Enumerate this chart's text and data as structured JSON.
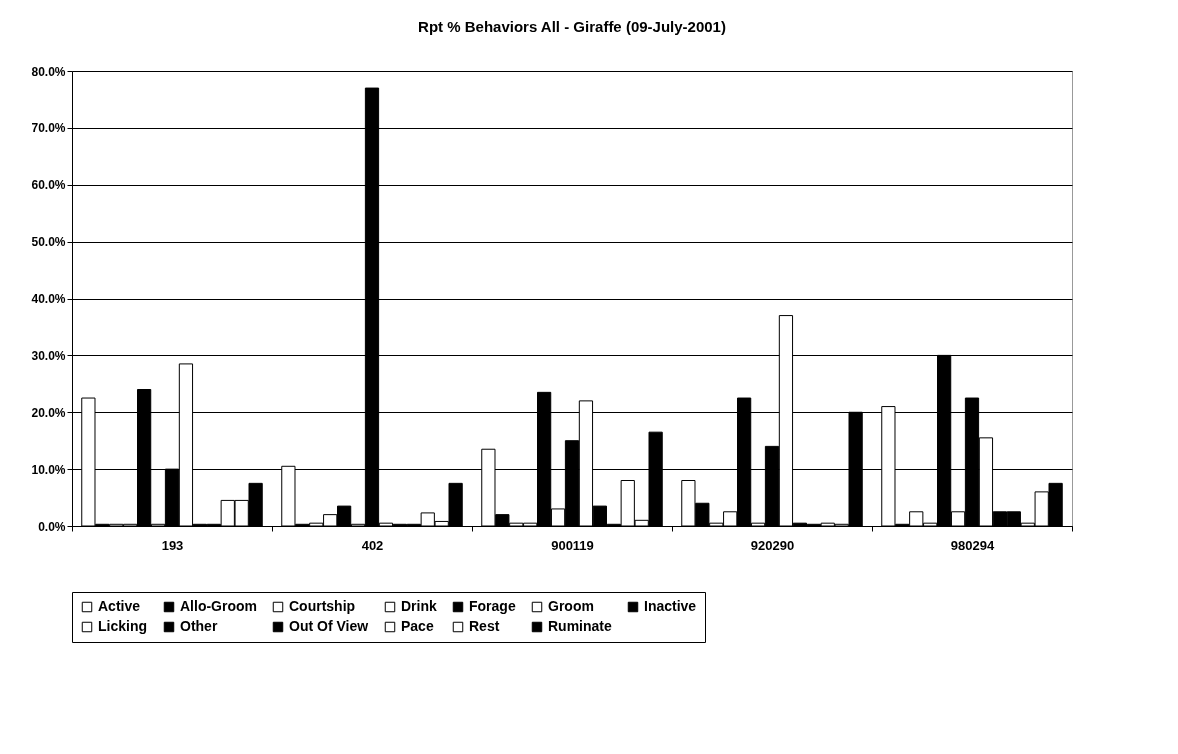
{
  "chart_data": {
    "type": "bar",
    "title": "Rpt % Behaviors All - Giraffe (09-July-2001)",
    "categories": [
      "193",
      "402",
      "900119",
      "920290",
      "980294"
    ],
    "series": [
      {
        "name": "Active",
        "color": "#ffffff",
        "values": [
          22.5,
          10.5,
          13.5,
          8,
          21
        ]
      },
      {
        "name": "Allo-Groom",
        "color": "#000000",
        "values": [
          0.3,
          0.3,
          2,
          4,
          0.3
        ]
      },
      {
        "name": "Courtship",
        "color": "#ffffff",
        "values": [
          0.3,
          0.5,
          0.5,
          0.5,
          2.5
        ]
      },
      {
        "name": "Drink",
        "color": "#ffffff",
        "values": [
          0.3,
          2,
          0.5,
          2.5,
          0.5
        ]
      },
      {
        "name": "Forage",
        "color": "#000000",
        "values": [
          24,
          3.5,
          23.5,
          22.5,
          30
        ]
      },
      {
        "name": "Groom",
        "color": "#ffffff",
        "values": [
          0.3,
          0.3,
          3,
          0.5,
          2.5
        ]
      },
      {
        "name": "Inactive",
        "color": "#000000",
        "values": [
          10,
          77,
          15,
          14,
          22.5
        ]
      },
      {
        "name": "Licking",
        "color": "#ffffff",
        "values": [
          28.5,
          0.5,
          22,
          37,
          15.5
        ]
      },
      {
        "name": "Other",
        "color": "#000000",
        "values": [
          0.3,
          0.3,
          3.5,
          0.5,
          2.5
        ]
      },
      {
        "name": "Out Of View",
        "color": "#000000",
        "values": [
          0.3,
          0.3,
          0.3,
          0.3,
          2.5
        ]
      },
      {
        "name": "Pace",
        "color": "#ffffff",
        "values": [
          4.5,
          2.3,
          8,
          0.5,
          0.5
        ]
      },
      {
        "name": "Rest",
        "color": "#ffffff",
        "values": [
          4.5,
          0.8,
          1,
          0.3,
          6
        ]
      },
      {
        "name": "Ruminate",
        "color": "#000000",
        "values": [
          7.5,
          7.5,
          16.5,
          20,
          7.5
        ]
      }
    ],
    "ylim": [
      0,
      80
    ],
    "yticks": [
      {
        "value": 0,
        "label": "0.0%"
      },
      {
        "value": 10,
        "label": "10.0%"
      },
      {
        "value": 20,
        "label": "20.0%"
      },
      {
        "value": 30,
        "label": "30.0%"
      },
      {
        "value": 40,
        "label": "40.0%"
      },
      {
        "value": 50,
        "label": "50.0%"
      },
      {
        "value": 60,
        "label": "60.0%"
      },
      {
        "value": 70,
        "label": "70.0%"
      },
      {
        "value": 80,
        "label": "80.0%"
      }
    ],
    "grid": "y",
    "legend": "bottom"
  }
}
